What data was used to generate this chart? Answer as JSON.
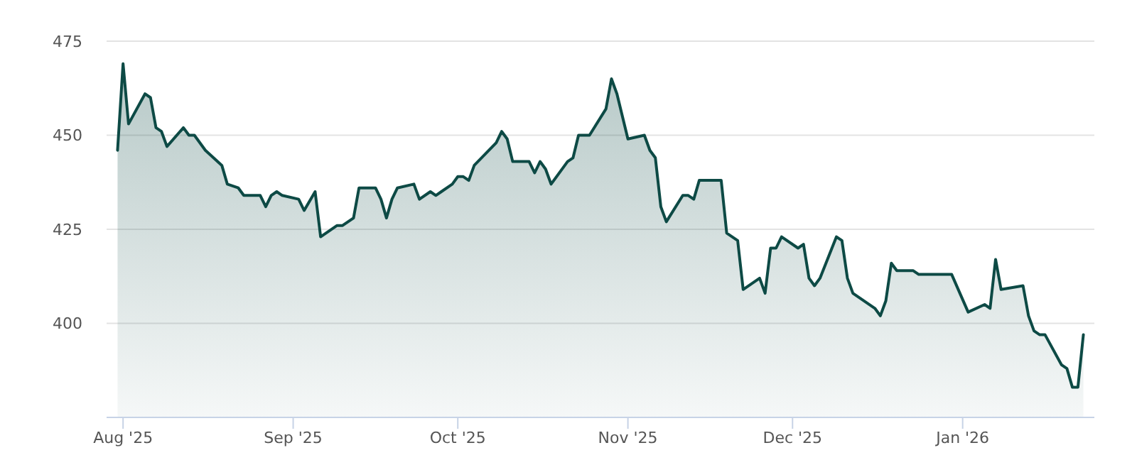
{
  "chart_data": {
    "type": "area",
    "color": "#0d4a45",
    "x": [
      "2025-07-31",
      "2025-08-01",
      "2025-08-02",
      "2025-08-05",
      "2025-08-06",
      "2025-08-07",
      "2025-08-08",
      "2025-08-09",
      "2025-08-12",
      "2025-08-13",
      "2025-08-14",
      "2025-08-16",
      "2025-08-19",
      "2025-08-20",
      "2025-08-22",
      "2025-08-23",
      "2025-08-26",
      "2025-08-27",
      "2025-08-28",
      "2025-08-29",
      "2025-08-30",
      "2025-09-02",
      "2025-09-03",
      "2025-09-05",
      "2025-09-06",
      "2025-09-09",
      "2025-09-10",
      "2025-09-11",
      "2025-09-12",
      "2025-09-13",
      "2025-09-16",
      "2025-09-17",
      "2025-09-18",
      "2025-09-19",
      "2025-09-20",
      "2025-09-23",
      "2025-09-24",
      "2025-09-26",
      "2025-09-27",
      "2025-09-28",
      "2025-09-30",
      "2025-10-01",
      "2025-10-02",
      "2025-10-03",
      "2025-10-04",
      "2025-10-08",
      "2025-10-09",
      "2025-10-10",
      "2025-10-11",
      "2025-10-14",
      "2025-10-15",
      "2025-10-16",
      "2025-10-17",
      "2025-10-18",
      "2025-10-21",
      "2025-10-22",
      "2025-10-23",
      "2025-10-25",
      "2025-10-28",
      "2025-10-29",
      "2025-10-30",
      "2025-11-01",
      "2025-11-04",
      "2025-11-05",
      "2025-11-06",
      "2025-11-07",
      "2025-11-08",
      "2025-11-11",
      "2025-11-12",
      "2025-11-13",
      "2025-11-14",
      "2025-11-18",
      "2025-11-19",
      "2025-11-21",
      "2025-11-22",
      "2025-11-25",
      "2025-11-26",
      "2025-11-27",
      "2025-11-28",
      "2025-11-29",
      "2025-12-02",
      "2025-12-03",
      "2025-12-04",
      "2025-12-05",
      "2025-12-06",
      "2025-12-09",
      "2025-12-10",
      "2025-12-11",
      "2025-12-12",
      "2025-12-16",
      "2025-12-17",
      "2025-12-18",
      "2025-12-19",
      "2025-12-20",
      "2025-12-23",
      "2025-12-24",
      "2025-12-30",
      "2026-01-02",
      "2026-01-05",
      "2026-01-06",
      "2026-01-07",
      "2026-01-08",
      "2026-01-12",
      "2026-01-13",
      "2026-01-14",
      "2026-01-15",
      "2026-01-16",
      "2026-01-19",
      "2026-01-20",
      "2026-01-21",
      "2026-01-22",
      "2026-01-23"
    ],
    "values": [
      446,
      469,
      453,
      461,
      460,
      452,
      451,
      447,
      452,
      450,
      450,
      446,
      442,
      437,
      436,
      434,
      434,
      431,
      434,
      435,
      434,
      433,
      430,
      435,
      423,
      426,
      426,
      427,
      428,
      436,
      436,
      433,
      428,
      433,
      436,
      437,
      433,
      435,
      434,
      435,
      437,
      439,
      439,
      438,
      442,
      448,
      451,
      449,
      443,
      443,
      440,
      443,
      441,
      437,
      443,
      444,
      450,
      450,
      457,
      465,
      461,
      449,
      450,
      446,
      444,
      431,
      427,
      434,
      434,
      433,
      438,
      438,
      424,
      422,
      409,
      412,
      408,
      420,
      420,
      423,
      420,
      421,
      412,
      410,
      412,
      423,
      422,
      412,
      408,
      404,
      402,
      406,
      416,
      414,
      414,
      413,
      413,
      403,
      405,
      404,
      417,
      409,
      410,
      402,
      398,
      397,
      397,
      389,
      388,
      383,
      383,
      397
    ],
    "xlim": [
      "2025-07-29",
      "2026-01-25"
    ],
    "xticks": [
      {
        "value": "2025-08-01",
        "label": "Aug '25"
      },
      {
        "value": "2025-09-01",
        "label": "Sep '25"
      },
      {
        "value": "2025-10-01",
        "label": "Oct '25"
      },
      {
        "value": "2025-11-01",
        "label": "Nov '25"
      },
      {
        "value": "2025-12-01",
        "label": "Dec '25"
      },
      {
        "value": "2026-01-01",
        "label": "Jan '26"
      }
    ],
    "ylim": [
      375,
      475
    ],
    "yticks": [
      {
        "value": 375,
        "label": null
      },
      400,
      425,
      450,
      475
    ],
    "grid": "y"
  }
}
